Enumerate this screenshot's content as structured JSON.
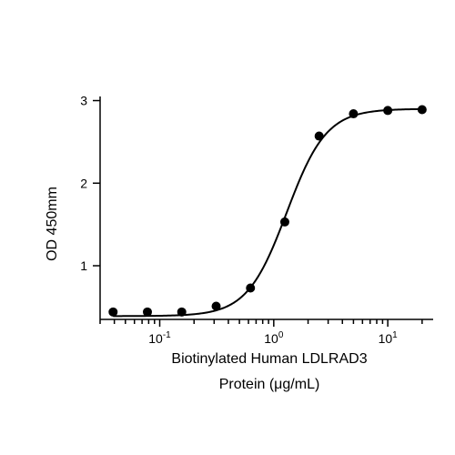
{
  "chart_data": {
    "type": "scatter",
    "xlabel": [
      "Biotinylated Human LDLRAD3",
      "Protein (μg/mL)"
    ],
    "ylabel": "OD 450mm",
    "x_scale": "log",
    "xlim": [
      0.03,
      25
    ],
    "ylim": [
      0.35,
      3.05
    ],
    "x_ticks": [
      {
        "value": 0.1,
        "base": "10",
        "exp": "-1"
      },
      {
        "value": 1,
        "base": "10",
        "exp": "0"
      },
      {
        "value": 10,
        "base": "10",
        "exp": "1"
      }
    ],
    "y_ticks": [
      1,
      2,
      3
    ],
    "series": [
      {
        "points": [
          {
            "x": 0.039,
            "y": 0.44
          },
          {
            "x": 0.078,
            "y": 0.44
          },
          {
            "x": 0.156,
            "y": 0.44
          },
          {
            "x": 0.3125,
            "y": 0.51
          },
          {
            "x": 0.625,
            "y": 0.73
          },
          {
            "x": 1.25,
            "y": 1.53
          },
          {
            "x": 2.5,
            "y": 2.57
          },
          {
            "x": 5,
            "y": 2.84
          },
          {
            "x": 10,
            "y": 2.88
          },
          {
            "x": 20,
            "y": 2.89
          }
        ],
        "fit": {
          "model": "4PL",
          "bottom": 0.39,
          "top": 2.9,
          "ec50": 1.3,
          "hill": 2.5
        },
        "color": "#000000"
      }
    ],
    "grid": false,
    "legend": "none"
  }
}
